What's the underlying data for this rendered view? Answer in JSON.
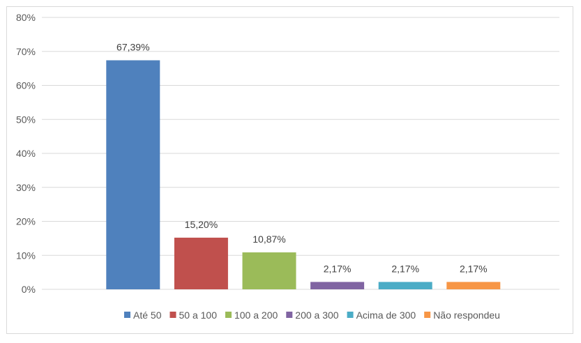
{
  "chart_data": {
    "type": "bar",
    "title": "",
    "xlabel": "",
    "ylabel": "",
    "ylim": [
      0,
      80
    ],
    "y_ticks": [
      "0%",
      "10%",
      "20%",
      "30%",
      "40%",
      "50%",
      "60%",
      "70%",
      "80%"
    ],
    "grid": true,
    "legend_position": "bottom",
    "series": [
      {
        "name": "Até 50",
        "value": 67.39,
        "label": "67,39%",
        "color": "#4f81bd"
      },
      {
        "name": "50 a 100",
        "value": 15.2,
        "label": "15,20%",
        "color": "#c0504d"
      },
      {
        "name": "100 a 200",
        "value": 10.87,
        "label": "10,87%",
        "color": "#9bbb59"
      },
      {
        "name": "200 a 300",
        "value": 2.17,
        "label": "2,17%",
        "color": "#8064a2"
      },
      {
        "name": "Acima de 300",
        "value": 2.17,
        "label": "2,17%",
        "color": "#4bacc6"
      },
      {
        "name": "Não respondeu",
        "value": 2.17,
        "label": "2,17%",
        "color": "#f79646"
      }
    ]
  }
}
